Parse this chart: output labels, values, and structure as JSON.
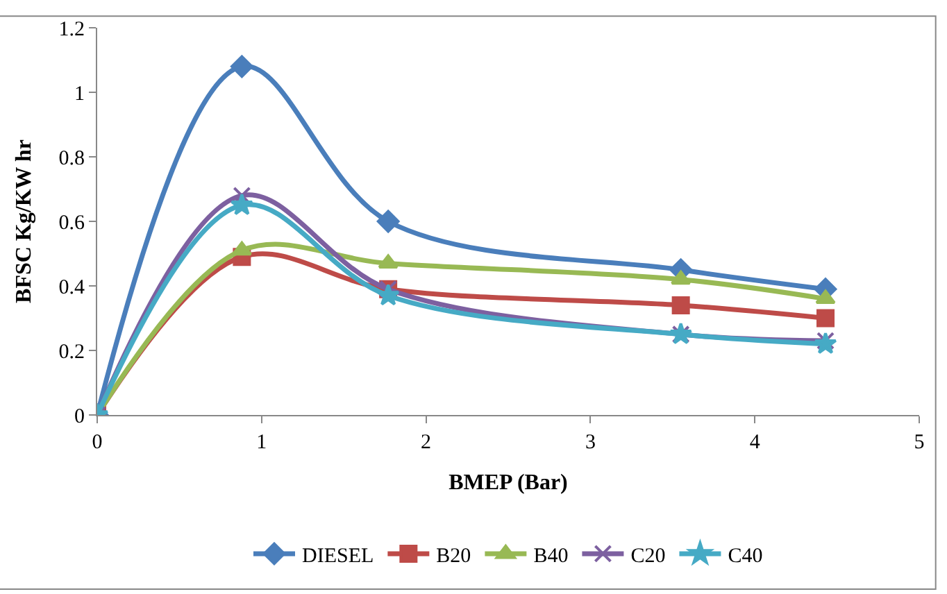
{
  "chart_data": {
    "type": "line",
    "xlabel": "BMEP (Bar)",
    "ylabel": "BFSC Kg/KW hr",
    "x": [
      0,
      0.88,
      1.77,
      3.55,
      4.43
    ],
    "series": [
      {
        "name": "DIESEL",
        "color": "#4a7ebb",
        "marker": "diamond",
        "values": [
          0,
          1.08,
          0.6,
          0.45,
          0.39
        ]
      },
      {
        "name": "B20",
        "color": "#be4b48",
        "marker": "square",
        "values": [
          0,
          0.49,
          0.39,
          0.34,
          0.3
        ]
      },
      {
        "name": "B40",
        "color": "#98b954",
        "marker": "triangle",
        "values": [
          0,
          0.51,
          0.47,
          0.42,
          0.36
        ]
      },
      {
        "name": "C20",
        "color": "#7d60a0",
        "marker": "cross",
        "values": [
          0,
          0.68,
          0.39,
          0.25,
          0.23
        ]
      },
      {
        "name": "C40",
        "color": "#46aac5",
        "marker": "star",
        "values": [
          0,
          0.65,
          0.37,
          0.25,
          0.22
        ]
      }
    ],
    "xlim": [
      0,
      5
    ],
    "xticks": [
      0,
      1,
      2,
      3,
      4,
      5
    ],
    "ylim": [
      0,
      1.2
    ],
    "yticks": [
      0,
      0.2,
      0.4,
      0.6,
      0.8,
      1,
      1.2
    ],
    "legend": "bottom"
  }
}
